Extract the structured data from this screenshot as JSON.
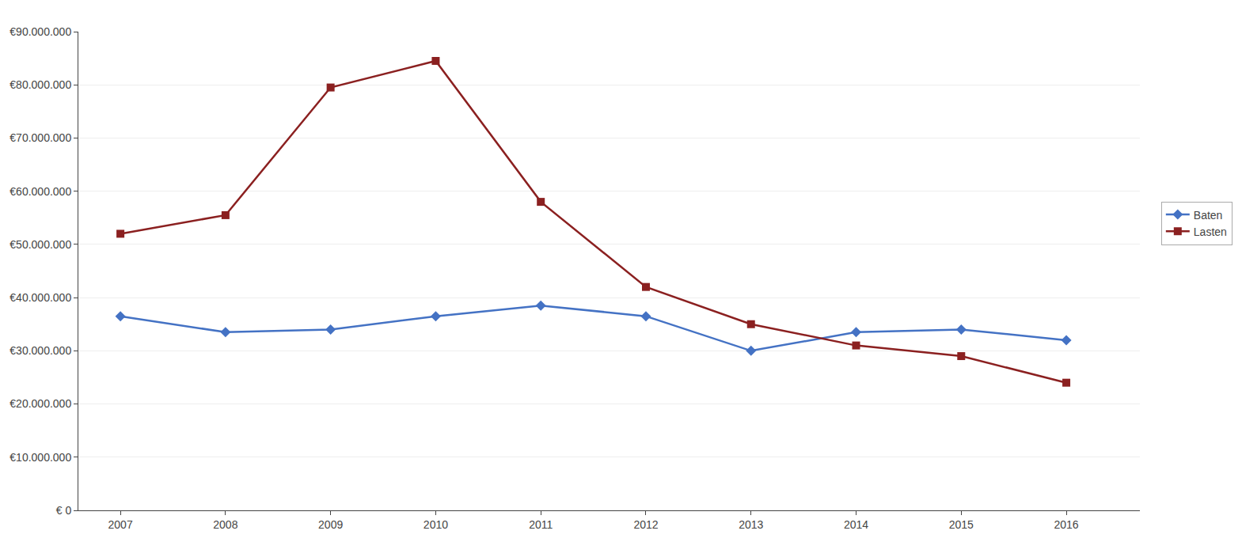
{
  "chart_data": {
    "type": "line",
    "x": [
      2007,
      2008,
      2009,
      2010,
      2011,
      2012,
      2013,
      2014,
      2015,
      2016
    ],
    "series": [
      {
        "name": "Baten",
        "color": "#4472C4",
        "marker": "diamond",
        "values": [
          36500000,
          33500000,
          34000000,
          36500000,
          38500000,
          36500000,
          30000000,
          33500000,
          34000000,
          32000000
        ]
      },
      {
        "name": "Lasten",
        "color": "#8B2020",
        "marker": "square",
        "values": [
          52000000,
          55500000,
          79500000,
          84500000,
          58000000,
          42000000,
          35000000,
          31000000,
          29000000,
          24000000
        ]
      }
    ],
    "xlim": [
      2006.6,
      2016.7
    ],
    "xticks": [
      2007,
      2008,
      2009,
      2010,
      2011,
      2012,
      2013,
      2014,
      2015,
      2016
    ],
    "ylim": [
      0,
      90000000
    ],
    "yticks": [
      {
        "value": 0,
        "label": "€ 0"
      },
      {
        "value": 10000000,
        "label": "€10.000.000"
      },
      {
        "value": 20000000,
        "label": "€20.000.000"
      },
      {
        "value": 30000000,
        "label": "€30.000.000"
      },
      {
        "value": 40000000,
        "label": "€40.000.000"
      },
      {
        "value": 50000000,
        "label": "€50.000.000"
      },
      {
        "value": 60000000,
        "label": "€60.000.000"
      },
      {
        "value": 70000000,
        "label": "€70.000.000"
      },
      {
        "value": 80000000,
        "label": "€80.000.000"
      },
      {
        "value": 90000000,
        "label": "€90.000.000"
      }
    ],
    "grid": true,
    "legend": "right"
  }
}
